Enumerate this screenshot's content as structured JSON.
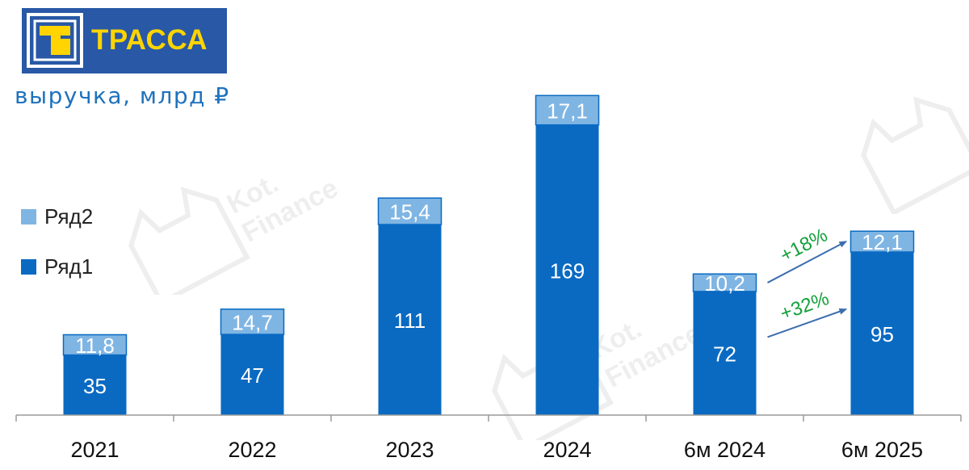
{
  "logo": {
    "text": "ТРАССА",
    "colors": {
      "background": "#2858a6",
      "text": "#ffd400",
      "mark": "#ffffff"
    }
  },
  "subtitle": "выручка, млрд ₽",
  "watermark": {
    "line1": "Kot.",
    "line2": "Finance"
  },
  "colors": {
    "series1": "#0a6ac2",
    "series2": "#7fb5e3",
    "bar_label": "#ffffff",
    "growth": "#14a03c",
    "arrow": "#3c6eaf",
    "axis": "#9a9a9a"
  },
  "chart_data": {
    "type": "bar",
    "stacked": true,
    "categories": [
      "2021",
      "2022",
      "2023",
      "2024",
      "6м 2024",
      "6м 2025"
    ],
    "series": [
      {
        "name": "Ряд1",
        "values": [
          35,
          47,
          111,
          169,
          72,
          95
        ],
        "labels": [
          "35",
          "47",
          "111",
          "169",
          "72",
          "95"
        ]
      },
      {
        "name": "Ряд2",
        "values": [
          11.8,
          14.7,
          15.4,
          17.1,
          10.2,
          12.1
        ],
        "labels": [
          "11,8",
          "14,7",
          "15,4",
          "17,1",
          "10,2",
          "12,1"
        ]
      }
    ],
    "legend_order": [
      "Ряд2",
      "Ряд1"
    ],
    "legend_position": "left",
    "ylim": [
      0,
      190
    ],
    "grid": false,
    "annotations": [
      {
        "text": "+18%",
        "series": "Ряд2",
        "from": "6м 2024",
        "to": "6м 2025"
      },
      {
        "text": "+32%",
        "series": "Ряд1",
        "from": "6м 2024",
        "to": "6м 2025"
      }
    ]
  }
}
